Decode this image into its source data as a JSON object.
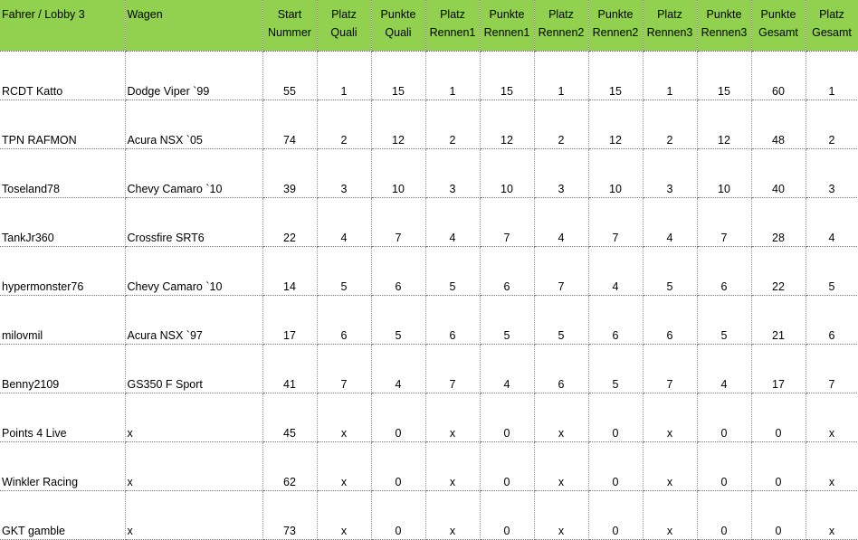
{
  "table": {
    "header": [
      [
        "Fahrer / Lobby 3"
      ],
      [
        "Wagen"
      ],
      [
        "Start",
        "Nummer"
      ],
      [
        "Platz",
        "Quali"
      ],
      [
        "Punkte",
        "Quali"
      ],
      [
        "Platz",
        "Rennen1"
      ],
      [
        "Punkte",
        "Rennen1"
      ],
      [
        "Platz",
        "Rennen2"
      ],
      [
        "Punkte",
        "Rennen2"
      ],
      [
        "Platz",
        "Rennen3"
      ],
      [
        "Punkte",
        "Rennen3"
      ],
      [
        "Punkte",
        "Gesamt"
      ],
      [
        "Platz",
        "Gesamt"
      ]
    ],
    "rows": [
      [
        "RCDT Katto",
        "Dodge Viper `99",
        "55",
        "1",
        "15",
        "1",
        "15",
        "1",
        "15",
        "1",
        "15",
        "60",
        "1"
      ],
      [
        "TPN RAFMON",
        "Acura NSX `05",
        "74",
        "2",
        "12",
        "2",
        "12",
        "2",
        "12",
        "2",
        "12",
        "48",
        "2"
      ],
      [
        "Toseland78",
        "Chevy Camaro `10",
        "39",
        "3",
        "10",
        "3",
        "10",
        "3",
        "10",
        "3",
        "10",
        "40",
        "3"
      ],
      [
        "TankJr360",
        "Crossfire SRT6",
        "22",
        "4",
        "7",
        "4",
        "7",
        "4",
        "7",
        "4",
        "7",
        "28",
        "4"
      ],
      [
        "hypermonster76",
        "Chevy Camaro `10",
        "14",
        "5",
        "6",
        "5",
        "6",
        "7",
        "4",
        "5",
        "6",
        "22",
        "5"
      ],
      [
        "milovmil",
        "Acura NSX `97",
        "17",
        "6",
        "5",
        "6",
        "5",
        "5",
        "6",
        "6",
        "5",
        "21",
        "6"
      ],
      [
        "Benny2109",
        "GS350 F Sport",
        "41",
        "7",
        "4",
        "7",
        "4",
        "6",
        "5",
        "7",
        "4",
        "17",
        "7"
      ],
      [
        "Points 4 Live",
        "x",
        "45",
        "x",
        "0",
        "x",
        "0",
        "x",
        "0",
        "x",
        "0",
        "0",
        "x"
      ],
      [
        "Winkler Racing",
        "x",
        "62",
        "x",
        "0",
        "x",
        "0",
        "x",
        "0",
        "x",
        "0",
        "0",
        "x"
      ],
      [
        "GKT gamble",
        "x",
        "73",
        "x",
        "0",
        "x",
        "0",
        "x",
        "0",
        "x",
        "0",
        "0",
        "x"
      ]
    ]
  }
}
